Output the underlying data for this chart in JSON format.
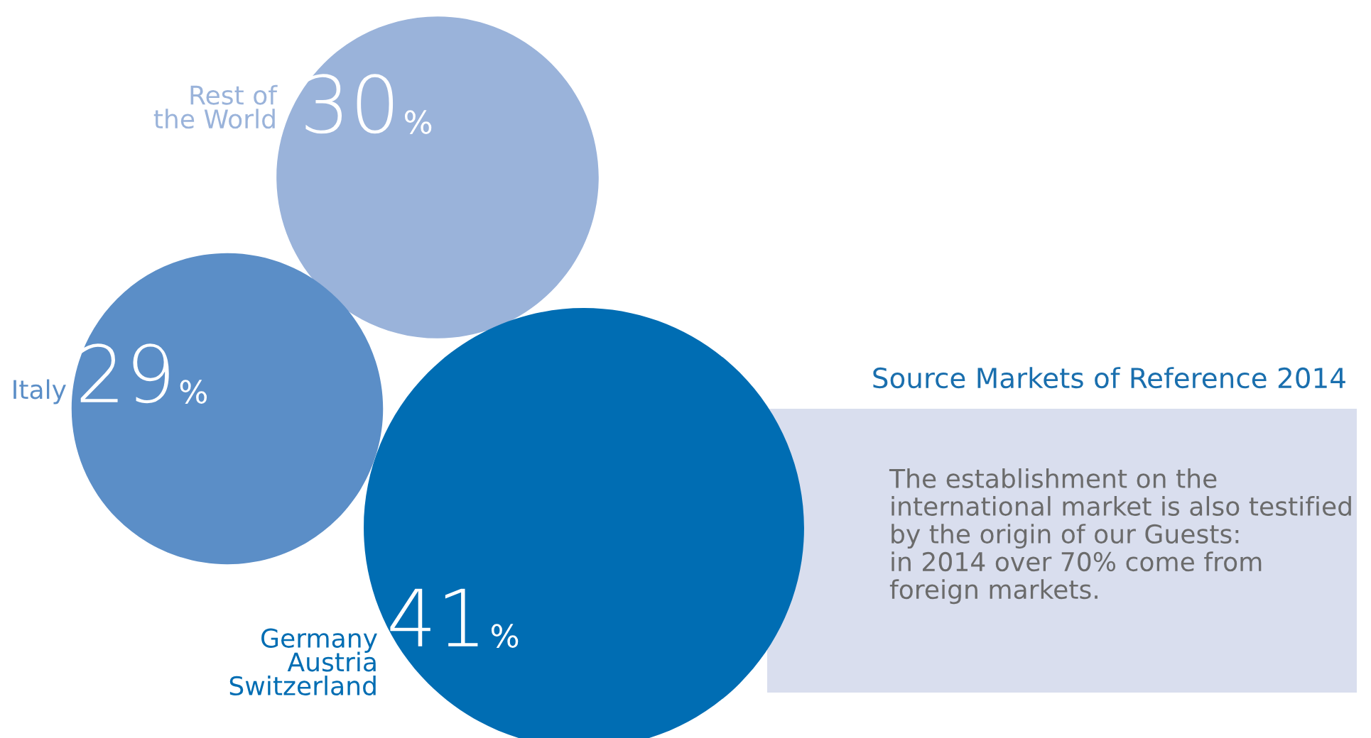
{
  "chart_data": {
    "type": "other",
    "title": "Source Markets of Reference 2014",
    "categories": [
      "Rest of\nthe World",
      "Italy",
      "Germany\nAustria\nSwitzerland"
    ],
    "values": [
      30,
      29,
      41
    ],
    "value_labels": [
      "30%",
      "29%",
      "41%"
    ],
    "colors": [
      "#9ab3da",
      "#5b8ec7",
      "#006db3"
    ],
    "annotations": [
      "The establishment on the\ninternational market is also testified\nby the origin of our Guests:\nin 2014 over 70% come from\nforeign markets."
    ]
  }
}
